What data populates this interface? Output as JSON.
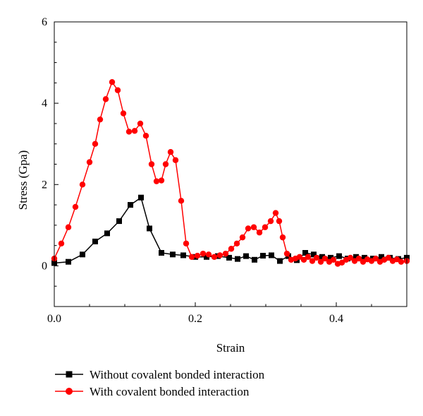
{
  "chart_data": {
    "type": "line",
    "title": "",
    "xlabel": "Strain",
    "ylabel": "Stress (Gpa)",
    "xlim": [
      0,
      0.5
    ],
    "ylim": [
      -1,
      6
    ],
    "xticks": [
      0.0,
      0.2,
      0.4
    ],
    "xtick_labels": [
      "0.0",
      "0.2",
      "0.4"
    ],
    "yticks": [
      0,
      2,
      4,
      6
    ],
    "ytick_labels": [
      "0",
      "2",
      "4",
      "6"
    ],
    "grid": false,
    "legend_position": "bottom",
    "series": [
      {
        "name": "Without covalent bonded interaction",
        "color": "#000000",
        "marker": "square",
        "points": [
          [
            0.0,
            0.07
          ],
          [
            0.02,
            0.1
          ],
          [
            0.04,
            0.28
          ],
          [
            0.058,
            0.6
          ],
          [
            0.075,
            0.8
          ],
          [
            0.092,
            1.1
          ],
          [
            0.108,
            1.5
          ],
          [
            0.123,
            1.68
          ],
          [
            0.135,
            0.92
          ],
          [
            0.152,
            0.32
          ],
          [
            0.168,
            0.28
          ],
          [
            0.183,
            0.26
          ],
          [
            0.2,
            0.22
          ],
          [
            0.216,
            0.22
          ],
          [
            0.232,
            0.24
          ],
          [
            0.248,
            0.2
          ],
          [
            0.26,
            0.17
          ],
          [
            0.272,
            0.24
          ],
          [
            0.284,
            0.15
          ],
          [
            0.296,
            0.25
          ],
          [
            0.308,
            0.26
          ],
          [
            0.32,
            0.12
          ],
          [
            0.332,
            0.24
          ],
          [
            0.344,
            0.14
          ],
          [
            0.356,
            0.32
          ],
          [
            0.368,
            0.28
          ],
          [
            0.38,
            0.22
          ],
          [
            0.392,
            0.2
          ],
          [
            0.404,
            0.24
          ],
          [
            0.416,
            0.18
          ],
          [
            0.428,
            0.22
          ],
          [
            0.44,
            0.2
          ],
          [
            0.452,
            0.18
          ],
          [
            0.464,
            0.22
          ],
          [
            0.476,
            0.2
          ],
          [
            0.488,
            0.17
          ],
          [
            0.5,
            0.2
          ]
        ]
      },
      {
        "name": "With covalent bonded interaction",
        "color": "#ff0000",
        "marker": "circle",
        "points": [
          [
            0.0,
            0.18
          ],
          [
            0.01,
            0.55
          ],
          [
            0.02,
            0.95
          ],
          [
            0.03,
            1.45
          ],
          [
            0.04,
            2.0
          ],
          [
            0.05,
            2.55
          ],
          [
            0.058,
            3.0
          ],
          [
            0.065,
            3.6
          ],
          [
            0.073,
            4.1
          ],
          [
            0.082,
            4.52
          ],
          [
            0.09,
            4.32
          ],
          [
            0.098,
            3.75
          ],
          [
            0.106,
            3.3
          ],
          [
            0.114,
            3.32
          ],
          [
            0.122,
            3.5
          ],
          [
            0.13,
            3.2
          ],
          [
            0.138,
            2.5
          ],
          [
            0.145,
            2.08
          ],
          [
            0.152,
            2.1
          ],
          [
            0.158,
            2.5
          ],
          [
            0.165,
            2.8
          ],
          [
            0.172,
            2.6
          ],
          [
            0.18,
            1.6
          ],
          [
            0.187,
            0.55
          ],
          [
            0.195,
            0.22
          ],
          [
            0.203,
            0.25
          ],
          [
            0.211,
            0.3
          ],
          [
            0.219,
            0.28
          ],
          [
            0.227,
            0.22
          ],
          [
            0.235,
            0.26
          ],
          [
            0.243,
            0.3
          ],
          [
            0.251,
            0.42
          ],
          [
            0.259,
            0.55
          ],
          [
            0.267,
            0.7
          ],
          [
            0.275,
            0.92
          ],
          [
            0.283,
            0.95
          ],
          [
            0.291,
            0.82
          ],
          [
            0.299,
            0.95
          ],
          [
            0.307,
            1.1
          ],
          [
            0.314,
            1.3
          ],
          [
            0.319,
            1.1
          ],
          [
            0.324,
            0.7
          ],
          [
            0.33,
            0.3
          ],
          [
            0.336,
            0.15
          ],
          [
            0.342,
            0.18
          ],
          [
            0.348,
            0.22
          ],
          [
            0.354,
            0.15
          ],
          [
            0.36,
            0.22
          ],
          [
            0.366,
            0.12
          ],
          [
            0.372,
            0.2
          ],
          [
            0.378,
            0.1
          ],
          [
            0.384,
            0.18
          ],
          [
            0.39,
            0.1
          ],
          [
            0.396,
            0.15
          ],
          [
            0.402,
            0.05
          ],
          [
            0.408,
            0.08
          ],
          [
            0.414,
            0.15
          ],
          [
            0.42,
            0.2
          ],
          [
            0.426,
            0.12
          ],
          [
            0.432,
            0.18
          ],
          [
            0.438,
            0.1
          ],
          [
            0.444,
            0.16
          ],
          [
            0.45,
            0.12
          ],
          [
            0.456,
            0.18
          ],
          [
            0.462,
            0.1
          ],
          [
            0.468,
            0.15
          ],
          [
            0.474,
            0.2
          ],
          [
            0.48,
            0.12
          ],
          [
            0.486,
            0.16
          ],
          [
            0.492,
            0.1
          ],
          [
            0.5,
            0.12
          ]
        ]
      }
    ]
  }
}
